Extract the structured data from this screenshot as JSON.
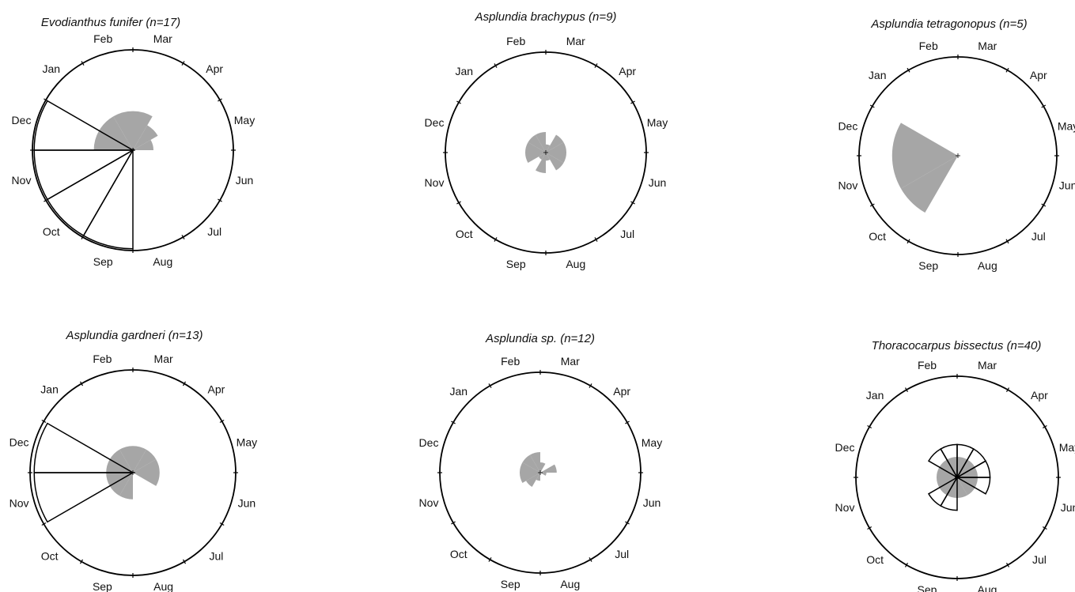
{
  "months": [
    "Mar",
    "Apr",
    "May",
    "Jun",
    "Jul",
    "Aug",
    "Sep",
    "Oct",
    "Nov",
    "Dec",
    "Jan",
    "Feb"
  ],
  "chart_data": [
    {
      "type": "rose",
      "title": "Evodianthus funifer (n=17)",
      "filled": {
        "Mar": 1.9,
        "Apr": 1.4,
        "May": 1.0,
        "Dec": 1.9,
        "Jan": 1.9,
        "Feb": 1.9
      },
      "outline": {
        "Sep": 4.8,
        "Oct": 4.8,
        "Nov": 4.8,
        "Dec": 4.8
      }
    },
    {
      "type": "rose",
      "title": "Asplundia brachypus (n=9)",
      "filled": {
        "Mar": 0.4,
        "Apr": 1.0,
        "May": 1.0,
        "Jun": 1.0,
        "Jul": 1.0,
        "Aug": 0.4,
        "Sep": 1.0,
        "Oct": 0.4,
        "Nov": 1.0,
        "Dec": 1.0,
        "Jan": 1.0,
        "Feb": 1.0
      }
    },
    {
      "type": "rose",
      "title": "Asplundia tetragonopus (n=5)",
      "filled": {
        "Oct": 3.2,
        "Nov": 3.2,
        "Dec": 3.2
      }
    },
    {
      "type": "rose",
      "title": "Asplundia gardneri (n=13)",
      "filled": {
        "Mar": 1.3,
        "Apr": 1.3,
        "May": 1.3,
        "Jun": 1.3,
        "Sep": 1.3,
        "Oct": 1.3,
        "Nov": 1.3,
        "Dec": 1.3,
        "Jan": 1.3,
        "Feb": 1.3
      },
      "outline": {
        "Nov": 4.8,
        "Dec": 4.8
      }
    },
    {
      "type": "rose",
      "title": "Asplundia sp. (n=12)",
      "filled": {
        "Mar": 0.5,
        "May": 0.8,
        "Jun": 0.3,
        "Sep": 0.4,
        "Oct": 0.8,
        "Nov": 1.0,
        "Dec": 1.0,
        "Jan": 1.0,
        "Feb": 1.0
      },
      "outline": {}
    },
    {
      "type": "rose",
      "title": "Thoracocarpus bissectus (n=40)",
      "filled": {
        "Mar": 1.0,
        "Apr": 1.0,
        "May": 1.0,
        "Jun": 1.0,
        "Jul": 1.0,
        "Aug": 1.0,
        "Sep": 1.0,
        "Oct": 1.0,
        "Nov": 1.0,
        "Dec": 1.0,
        "Jan": 1.0,
        "Feb": 1.0
      },
      "outline": {
        "Mar": 1.6,
        "Apr": 1.6,
        "May": 1.6,
        "Jun": 1.6,
        "Sep": 1.6,
        "Oct": 1.6,
        "Jan": 1.6,
        "Feb": 1.6
      }
    }
  ]
}
